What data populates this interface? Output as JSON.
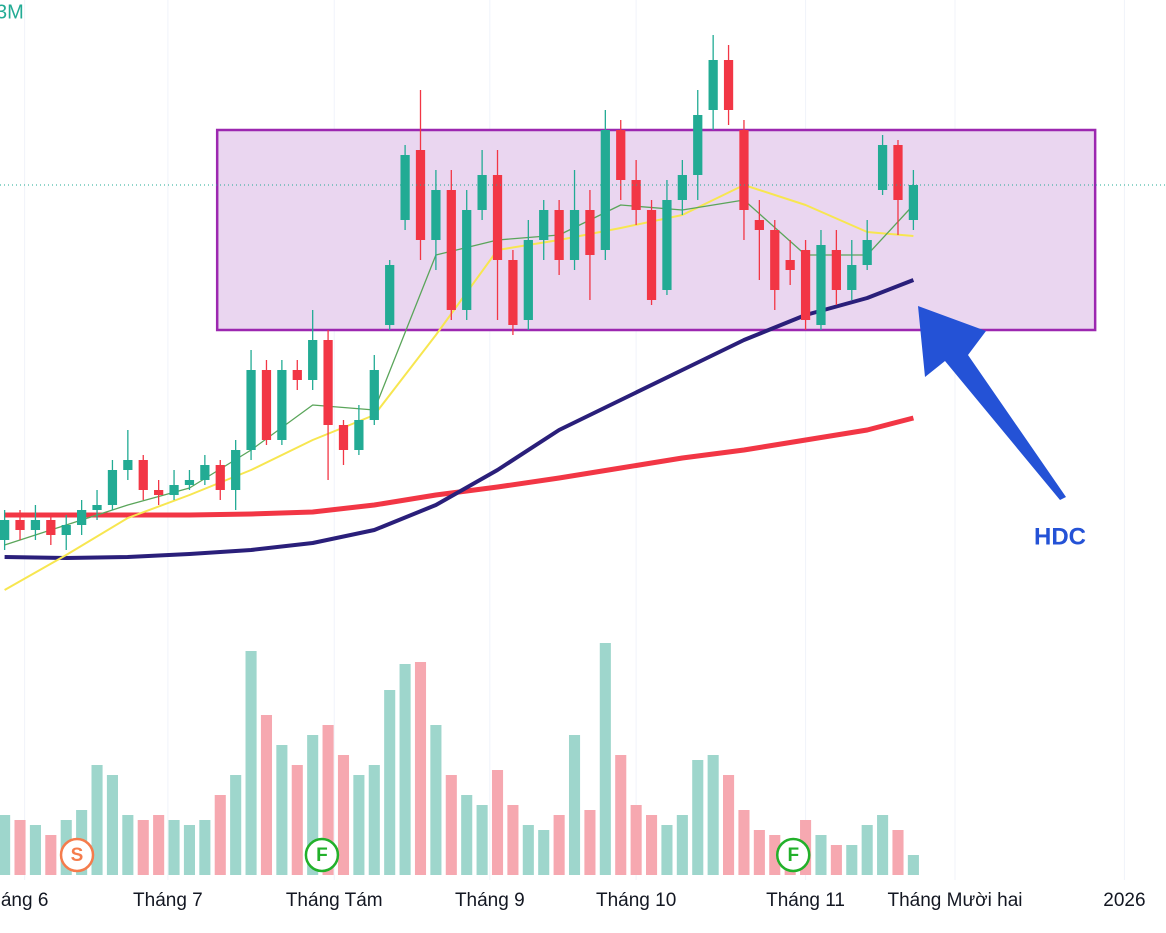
{
  "chart_data": {
    "type": "candlestick",
    "legend_text": "3M",
    "annotation": "HDC",
    "xlim": [
      -0.3,
      75.4
    ],
    "ylim": [
      0,
      62
    ],
    "volume_lim": [
      0,
      240
    ],
    "xticks": [
      {
        "value": 1.3,
        "label": "áng 6"
      },
      {
        "value": 10.6,
        "label": "Tháng 7"
      },
      {
        "value": 21.4,
        "label": "Tháng Tám"
      },
      {
        "value": 31.5,
        "label": "Tháng 9"
      },
      {
        "value": 41,
        "label": "Tháng 10"
      },
      {
        "value": 52,
        "label": "Tháng 11"
      },
      {
        "value": 61.7,
        "label": "Tháng Mười hai"
      },
      {
        "value": 72.7,
        "label": "2026"
      }
    ],
    "candles": {
      "open": [
        8,
        10,
        9,
        10,
        8.5,
        9.5,
        11,
        11.5,
        15,
        16,
        13,
        12.5,
        13.5,
        14,
        15.5,
        13,
        17,
        25,
        18,
        25,
        24,
        28,
        19.5,
        17,
        20,
        29.5,
        40,
        47,
        38,
        43,
        31,
        41,
        44.5,
        36,
        30,
        38,
        41,
        36,
        41,
        37,
        49,
        44,
        41,
        33,
        42,
        44.5,
        51,
        56,
        49,
        40,
        39,
        36,
        37,
        29.5,
        37,
        33,
        35.5,
        43,
        47.5,
        40
      ],
      "high": [
        11,
        11,
        11.5,
        10.5,
        10.5,
        12,
        13,
        16,
        19,
        16.5,
        14,
        15,
        15,
        16.5,
        16,
        18,
        27,
        26,
        26,
        26,
        31,
        29,
        20,
        21.5,
        26.5,
        36,
        47.5,
        53,
        45,
        45,
        43,
        47,
        47,
        37,
        40,
        42,
        42,
        45,
        43,
        51,
        50,
        46,
        42,
        44,
        46,
        53,
        58.5,
        57.5,
        50,
        42,
        40,
        38,
        38,
        39,
        39,
        38,
        40,
        48.5,
        48,
        45
      ],
      "low": [
        7,
        8,
        8,
        7.5,
        7,
        8.5,
        10,
        11,
        14,
        12,
        11.5,
        12,
        13,
        13.5,
        12,
        11,
        16,
        17.5,
        17.5,
        23,
        23,
        14,
        15.5,
        16.5,
        19.5,
        29,
        39,
        36,
        35,
        30,
        30,
        40,
        30,
        28.5,
        29,
        36,
        34.5,
        35,
        32,
        36,
        42,
        39.5,
        31.5,
        32.5,
        40.5,
        42,
        49,
        49.5,
        38,
        34,
        31,
        33.5,
        29,
        29,
        31.5,
        32,
        35,
        42.5,
        38.5,
        39
      ],
      "close": [
        10,
        9,
        10,
        8.5,
        9.5,
        11,
        11.5,
        15,
        16,
        13,
        12.5,
        13.5,
        14,
        15.5,
        13,
        17,
        25,
        18,
        25,
        24,
        28,
        19.5,
        17,
        20,
        25,
        35.5,
        46.5,
        38,
        43,
        31,
        41,
        44.5,
        36,
        29.5,
        38,
        41,
        36,
        41,
        36.5,
        49,
        44,
        41,
        32,
        42,
        44.5,
        50.5,
        56,
        51,
        41,
        39,
        33,
        35,
        30,
        37.5,
        33,
        35.5,
        38,
        47.5,
        42,
        43.5
      ]
    },
    "volume": [
      60,
      55,
      50,
      40,
      55,
      65,
      110,
      100,
      60,
      55,
      60,
      55,
      50,
      55,
      80,
      100,
      224,
      160,
      130,
      110,
      140,
      150,
      120,
      100,
      110,
      185,
      211,
      213,
      150,
      100,
      80,
      70,
      105,
      70,
      50,
      45,
      60,
      140,
      65,
      232,
      120,
      70,
      60,
      50,
      60,
      115,
      120,
      100,
      65,
      45,
      40,
      35,
      55,
      40,
      30,
      30,
      50,
      60,
      45,
      20
    ],
    "up_color": "#22ab94",
    "down_color": "#f23645",
    "volume_up_color": "#9ed6cc",
    "volume_down_color": "#f6a8b0",
    "ma": {
      "x": [
        0,
        4,
        8,
        12,
        16,
        20,
        24,
        28,
        32,
        36,
        40,
        44,
        48,
        52,
        56,
        59
      ],
      "series": [
        {
          "color": "#f23645",
          "values": [
            10.5,
            10.5,
            10.5,
            10.5,
            10.6,
            10.8,
            11.5,
            12.5,
            13.3,
            14.2,
            15.2,
            16.2,
            17,
            18,
            19,
            20.2
          ]
        },
        {
          "color": "#2a1f7a",
          "values": [
            6.3,
            6.2,
            6.3,
            6.6,
            7,
            7.7,
            9,
            11.5,
            15,
            19,
            22,
            25,
            28,
            30.5,
            32.2,
            34
          ]
        },
        {
          "color": "#f7e650",
          "values": [
            3,
            6.5,
            10.2,
            12.5,
            15,
            18,
            20.5,
            28.5,
            37,
            38,
            39.2,
            40.5,
            43.5,
            41.5,
            38.8,
            38.4
          ]
        },
        {
          "color": "#5aa55a",
          "values": [
            7.5,
            9.5,
            11.5,
            13.2,
            17,
            21.5,
            21,
            36.5,
            38,
            38.5,
            41.5,
            41,
            42,
            36.5,
            36.5,
            41.5
          ]
        }
      ]
    },
    "box": {
      "x": [
        13.8,
        70.8
      ],
      "y": [
        29,
        49
      ],
      "fill": "#ead6f0",
      "stroke": "#9c27b0"
    },
    "last_price_line": true,
    "events": [
      {
        "x": 4.7,
        "label": "S",
        "color": "#f57c4c"
      },
      {
        "x": 20.6,
        "label": "F",
        "color": "#22b02a"
      },
      {
        "x": 51.2,
        "label": "F",
        "color": "#22b02a"
      }
    ]
  }
}
